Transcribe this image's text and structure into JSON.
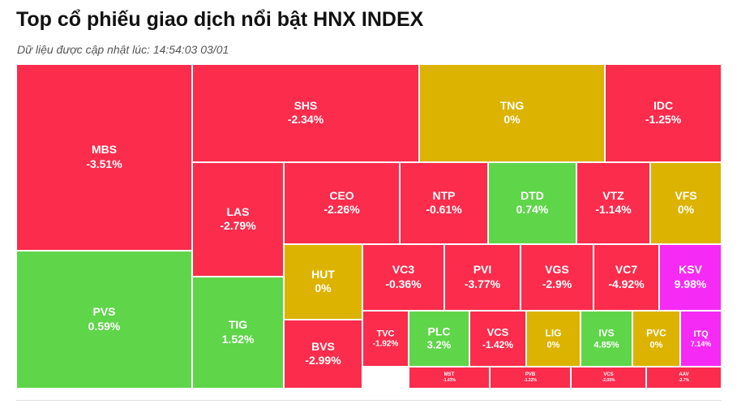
{
  "header": {
    "title": "Top cổ phiếu giao dịch nổi bật HNX INDEX",
    "update_text": "Dữ liệu được cập nhật lúc: 14:54:03 03/01"
  },
  "colors": {
    "down": "#fb2c4c",
    "flat": "#dcb300",
    "up": "#5fd54a",
    "ceiling": "#f52af5"
  },
  "chart_data": {
    "type": "treemap",
    "title": "Top cổ phiếu giao dịch nổi bật HNX INDEX",
    "items": [
      {
        "symbol": "MBS",
        "change": "-3.51%",
        "value": -3.51,
        "status": "down"
      },
      {
        "symbol": "PVS",
        "change": "0.59%",
        "value": 0.59,
        "status": "up"
      },
      {
        "symbol": "SHS",
        "change": "-2.34%",
        "value": -2.34,
        "status": "down"
      },
      {
        "symbol": "TNG",
        "change": "0%",
        "value": 0,
        "status": "flat"
      },
      {
        "symbol": "IDC",
        "change": "-1.25%",
        "value": -1.25,
        "status": "down"
      },
      {
        "symbol": "LAS",
        "change": "-2.79%",
        "value": -2.79,
        "status": "down"
      },
      {
        "symbol": "TIG",
        "change": "1.52%",
        "value": 1.52,
        "status": "up"
      },
      {
        "symbol": "CEO",
        "change": "-2.26%",
        "value": -2.26,
        "status": "down"
      },
      {
        "symbol": "NTP",
        "change": "-0.61%",
        "value": -0.61,
        "status": "down"
      },
      {
        "symbol": "DTD",
        "change": "0.74%",
        "value": 0.74,
        "status": "up"
      },
      {
        "symbol": "VTZ",
        "change": "-1.14%",
        "value": -1.14,
        "status": "down"
      },
      {
        "symbol": "VFS",
        "change": "0%",
        "value": 0,
        "status": "flat"
      },
      {
        "symbol": "HUT",
        "change": "0%",
        "value": 0,
        "status": "flat"
      },
      {
        "symbol": "VC3",
        "change": "-0.36%",
        "value": -0.36,
        "status": "down"
      },
      {
        "symbol": "PVI",
        "change": "-3.77%",
        "value": -3.77,
        "status": "down"
      },
      {
        "symbol": "VGS",
        "change": "-2.9%",
        "value": -2.9,
        "status": "down"
      },
      {
        "symbol": "VC7",
        "change": "-4.92%",
        "value": -4.92,
        "status": "down"
      },
      {
        "symbol": "KSV",
        "change": "9.98%",
        "value": 9.98,
        "status": "ceiling"
      },
      {
        "symbol": "BVS",
        "change": "-2.99%",
        "value": -2.99,
        "status": "down"
      },
      {
        "symbol": "TVC",
        "change": "-1.92%",
        "value": -1.92,
        "status": "down"
      },
      {
        "symbol": "PLC",
        "change": "3.2%",
        "value": 3.2,
        "status": "up"
      },
      {
        "symbol": "VCS",
        "change": "-1.42%",
        "value": -1.42,
        "status": "down"
      },
      {
        "symbol": "LIG",
        "change": "0%",
        "value": 0,
        "status": "flat"
      },
      {
        "symbol": "IVS",
        "change": "4.85%",
        "value": 4.85,
        "status": "up"
      },
      {
        "symbol": "PVC",
        "change": "0%",
        "value": 0,
        "status": "flat"
      },
      {
        "symbol": "ITQ",
        "change": "7.14%",
        "value": 7.14,
        "status": "ceiling"
      },
      {
        "symbol": "MST",
        "change": "-1.43%",
        "value": -1.43,
        "status": "down"
      },
      {
        "symbol": "PVB",
        "change": "-1.32%",
        "value": -1.32,
        "status": "down"
      },
      {
        "symbol": "VCS",
        "change": "-2.05%",
        "value": -2.05,
        "status": "down"
      },
      {
        "symbol": "AAV",
        "change": "-2.7%",
        "value": -2.7,
        "status": "down"
      }
    ]
  }
}
